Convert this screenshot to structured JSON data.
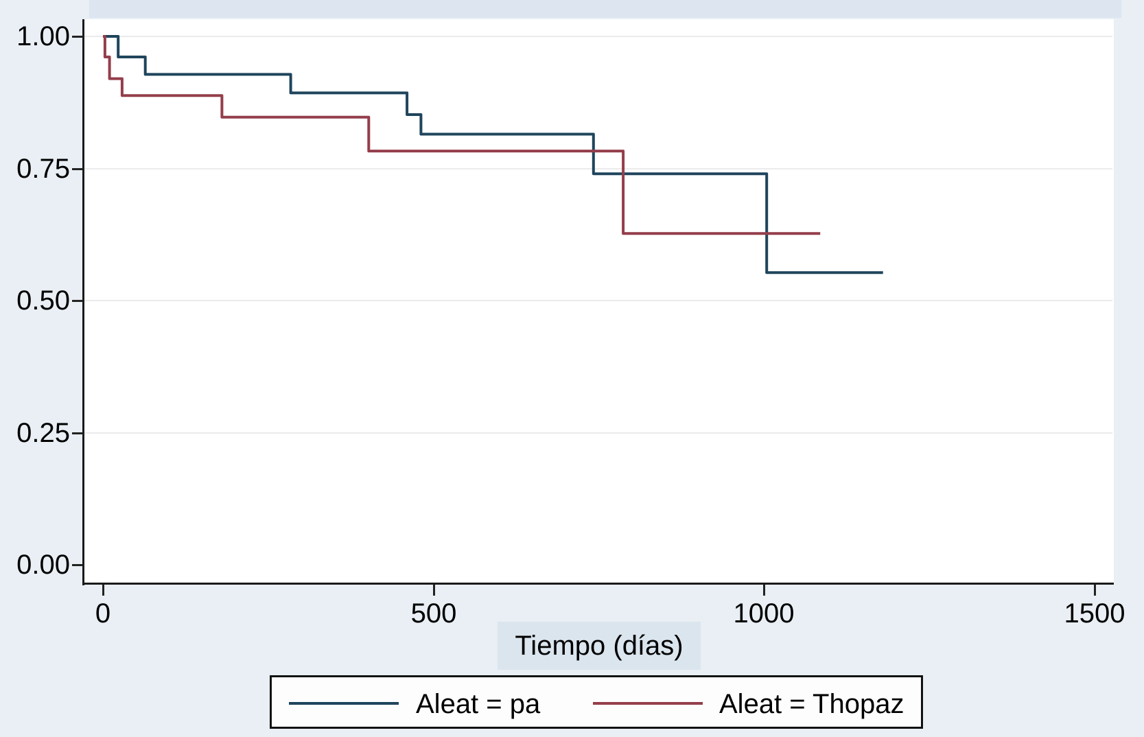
{
  "colors": {
    "background": "#e9eff4",
    "top_band": "#dce5f0",
    "plot_background": "#ffffff",
    "gridline": "#ebebeb",
    "axis": "#1a1a1a",
    "text": "#000000",
    "xlabel_highlight": "#dbe5ee",
    "legend_background": "#fdfdfd",
    "legend_border": "#111111",
    "series_navy": "#1f455c",
    "series_maroon": "#943e4b"
  },
  "chart_data": {
    "type": "line",
    "subtype": "kaplan-meier-step",
    "title": "",
    "xlabel": "Tiempo (días)",
    "ylabel": "",
    "xlim": [
      0,
      1500
    ],
    "ylim": [
      0,
      1
    ],
    "grid": "horizontal-gridlines-at-y-ticks",
    "legend_position": "bottom-center",
    "x_ticks": [
      {
        "value": 0,
        "label": "0"
      },
      {
        "value": 500,
        "label": "500"
      },
      {
        "value": 1000,
        "label": "1000"
      },
      {
        "value": 1500,
        "label": "1500"
      }
    ],
    "y_ticks": [
      {
        "value": 1.0,
        "label": "1.00"
      },
      {
        "value": 0.75,
        "label": "0.75"
      },
      {
        "value": 0.5,
        "label": "0.50"
      },
      {
        "value": 0.25,
        "label": "0.25"
      },
      {
        "value": 0.0,
        "label": "0.00"
      }
    ],
    "series": [
      {
        "name": "Aleat = pa",
        "color": "#1f455c",
        "start": {
          "t": 0,
          "s": 1.0
        },
        "drops": [
          {
            "t": 23,
            "s": 0.961
          },
          {
            "t": 64,
            "s": 0.928
          },
          {
            "t": 284,
            "s": 0.893
          },
          {
            "t": 460,
            "s": 0.852
          },
          {
            "t": 481,
            "s": 0.815
          },
          {
            "t": 742,
            "s": 0.74
          },
          {
            "t": 1004,
            "s": 0.553
          }
        ],
        "end_t": 1180
      },
      {
        "name": "Aleat = Thopaz",
        "color": "#943e4b",
        "start": {
          "t": 0,
          "s": 1.0
        },
        "drops": [
          {
            "t": 3,
            "s": 0.961
          },
          {
            "t": 10,
            "s": 0.92
          },
          {
            "t": 29,
            "s": 0.888
          },
          {
            "t": 180,
            "s": 0.847
          },
          {
            "t": 402,
            "s": 0.783
          },
          {
            "t": 787,
            "s": 0.627
          }
        ],
        "end_t": 1085
      }
    ]
  }
}
